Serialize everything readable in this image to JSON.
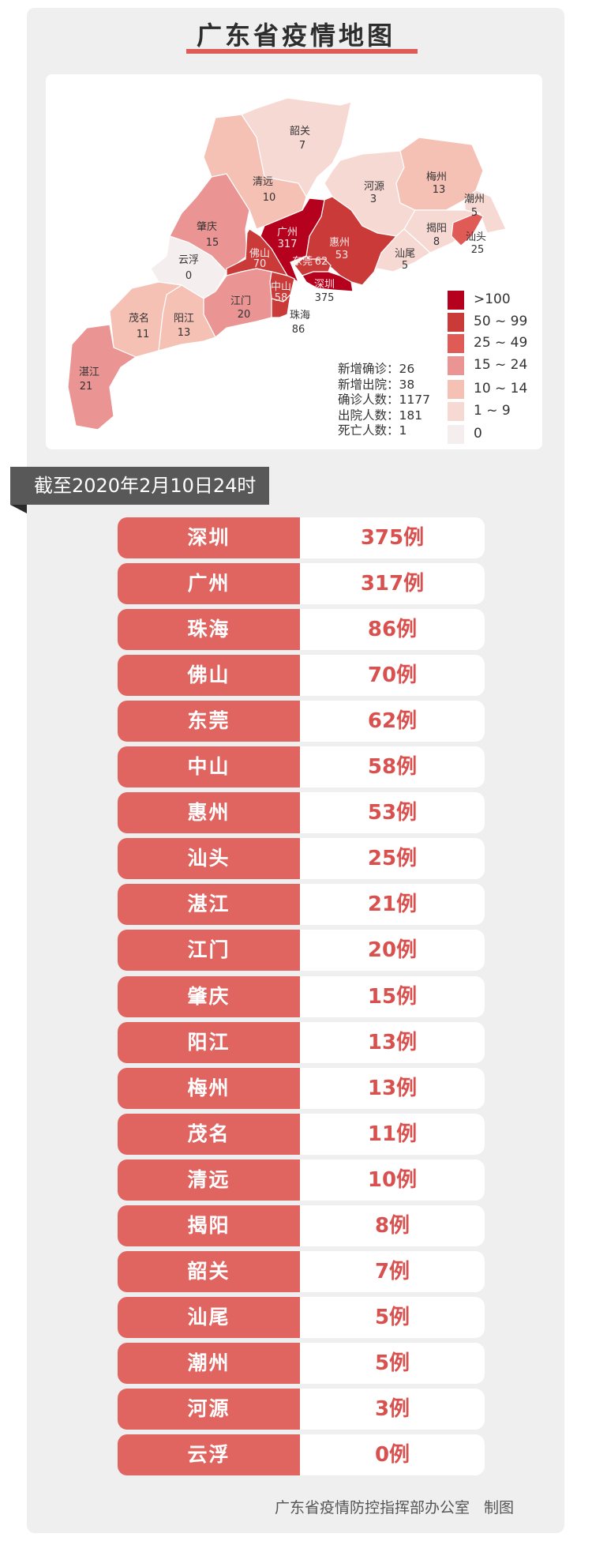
{
  "title": "广东省疫情地图",
  "legend": [
    {
      "label": ">100",
      "color": "#b5001e"
    },
    {
      "label": "50 ~ 99",
      "color": "#c93a38"
    },
    {
      "label": "25 ~ 49",
      "color": "#e05a56"
    },
    {
      "label": "15 ~ 24",
      "color": "#ea9593"
    },
    {
      "label": "10 ~ 14",
      "color": "#f5c1b4"
    },
    {
      "label": "1 ~ 9",
      "color": "#f7d9d4"
    },
    {
      "label": "0",
      "color": "#f5eeee"
    }
  ],
  "stats": [
    {
      "label": "新增确诊",
      "sep": "：",
      "value": "26"
    },
    {
      "label": "新增出院",
      "sep": "：",
      "value": "38"
    },
    {
      "label": "确诊人数",
      "sep": "：",
      "value": "1177"
    },
    {
      "label": "出院人数",
      "sep": "：",
      "value": "181"
    },
    {
      "label": "死亡人数",
      "sep": "：",
      "value": "1"
    }
  ],
  "map_regions": [
    {
      "name": "韶关",
      "cases": "7",
      "tier": 5
    },
    {
      "name": "清远",
      "cases": "10",
      "tier": 4
    },
    {
      "name": "肇庆",
      "cases": "15",
      "tier": 3
    },
    {
      "name": "云浮",
      "cases": "0",
      "tier": 6
    },
    {
      "name": "河源",
      "cases": "3",
      "tier": 5
    },
    {
      "name": "梅州",
      "cases": "13",
      "tier": 4
    },
    {
      "name": "潮州",
      "cases": "5",
      "tier": 5
    },
    {
      "name": "揭阳",
      "cases": "8",
      "tier": 5
    },
    {
      "name": "汕头",
      "cases": "25",
      "tier": 2
    },
    {
      "name": "汕尾",
      "cases": "5",
      "tier": 5
    },
    {
      "name": "惠州",
      "cases": "53",
      "tier": 1
    },
    {
      "name": "广州",
      "cases": "317",
      "tier": 0
    },
    {
      "name": "佛山",
      "cases": "70",
      "tier": 1
    },
    {
      "name": "东莞",
      "cases": "62",
      "tier": 1
    },
    {
      "name": "深圳",
      "cases": "375",
      "tier": 0
    },
    {
      "name": "中山",
      "cases": "58",
      "tier": 1
    },
    {
      "name": "珠海",
      "cases": "86",
      "tier": 1
    },
    {
      "name": "江门",
      "cases": "20",
      "tier": 3
    },
    {
      "name": "阳江",
      "cases": "13",
      "tier": 4
    },
    {
      "name": "茂名",
      "cases": "11",
      "tier": 4
    },
    {
      "name": "湛江",
      "cases": "21",
      "tier": 3
    }
  ],
  "date_banner": "截至2020年2月10日24时",
  "unit": "例",
  "rows": [
    {
      "city": "深圳",
      "cases": "375"
    },
    {
      "city": "广州",
      "cases": "317"
    },
    {
      "city": "珠海",
      "cases": "86"
    },
    {
      "city": "佛山",
      "cases": "70"
    },
    {
      "city": "东莞",
      "cases": "62"
    },
    {
      "city": "中山",
      "cases": "58"
    },
    {
      "city": "惠州",
      "cases": "53"
    },
    {
      "city": "汕头",
      "cases": "25"
    },
    {
      "city": "湛江",
      "cases": "21"
    },
    {
      "city": "江门",
      "cases": "20"
    },
    {
      "city": "肇庆",
      "cases": "15"
    },
    {
      "city": "阳江",
      "cases": "13"
    },
    {
      "city": "梅州",
      "cases": "13"
    },
    {
      "city": "茂名",
      "cases": "11"
    },
    {
      "city": "清远",
      "cases": "10"
    },
    {
      "city": "揭阳",
      "cases": "8"
    },
    {
      "city": "韶关",
      "cases": "7"
    },
    {
      "city": "汕尾",
      "cases": "5"
    },
    {
      "city": "潮州",
      "cases": "5"
    },
    {
      "city": "河源",
      "cases": "3"
    },
    {
      "city": "云浮",
      "cases": "0"
    }
  ],
  "footer": {
    "org": "广东省疫情防控指挥部办公室",
    "suffix": "制图"
  }
}
